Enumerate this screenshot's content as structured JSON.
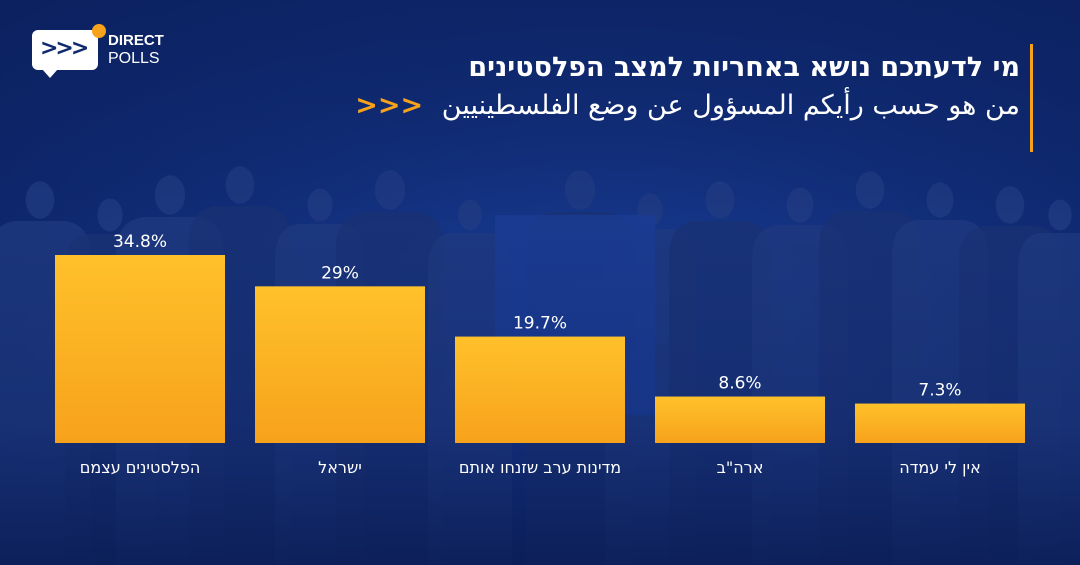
{
  "header": {
    "title_he": "מי לדעתכם נושא באחריות למצב הפלסטינים",
    "title_ar": "من هو حسب رأيكم المسؤول عن وضع الفلسطينيين",
    "arrows": "<<<"
  },
  "logo": {
    "line1": "DIRECT",
    "line2": "POLLS",
    "chevrons": ">>>"
  },
  "colors": {
    "bar": "#f7a21b",
    "bar_light": "#ffc12b",
    "accent": "#f7a21b",
    "background": "#0f2a6e"
  },
  "chart_data": {
    "type": "bar",
    "categories": [
      "הפלסטינים עצמם",
      "ישראל",
      "מדינות ערב שזנחו אותם",
      "ארה\"ב",
      "אין לי עמדה"
    ],
    "values": [
      34.8,
      29,
      19.7,
      8.6,
      7.3
    ],
    "data_labels": [
      "34.8%",
      "29%",
      "19.7%",
      "8.6%",
      "7.3%"
    ],
    "title": "",
    "xlabel": "",
    "ylabel": "",
    "ylim": [
      0,
      40
    ],
    "grid": false,
    "legend": "none"
  }
}
